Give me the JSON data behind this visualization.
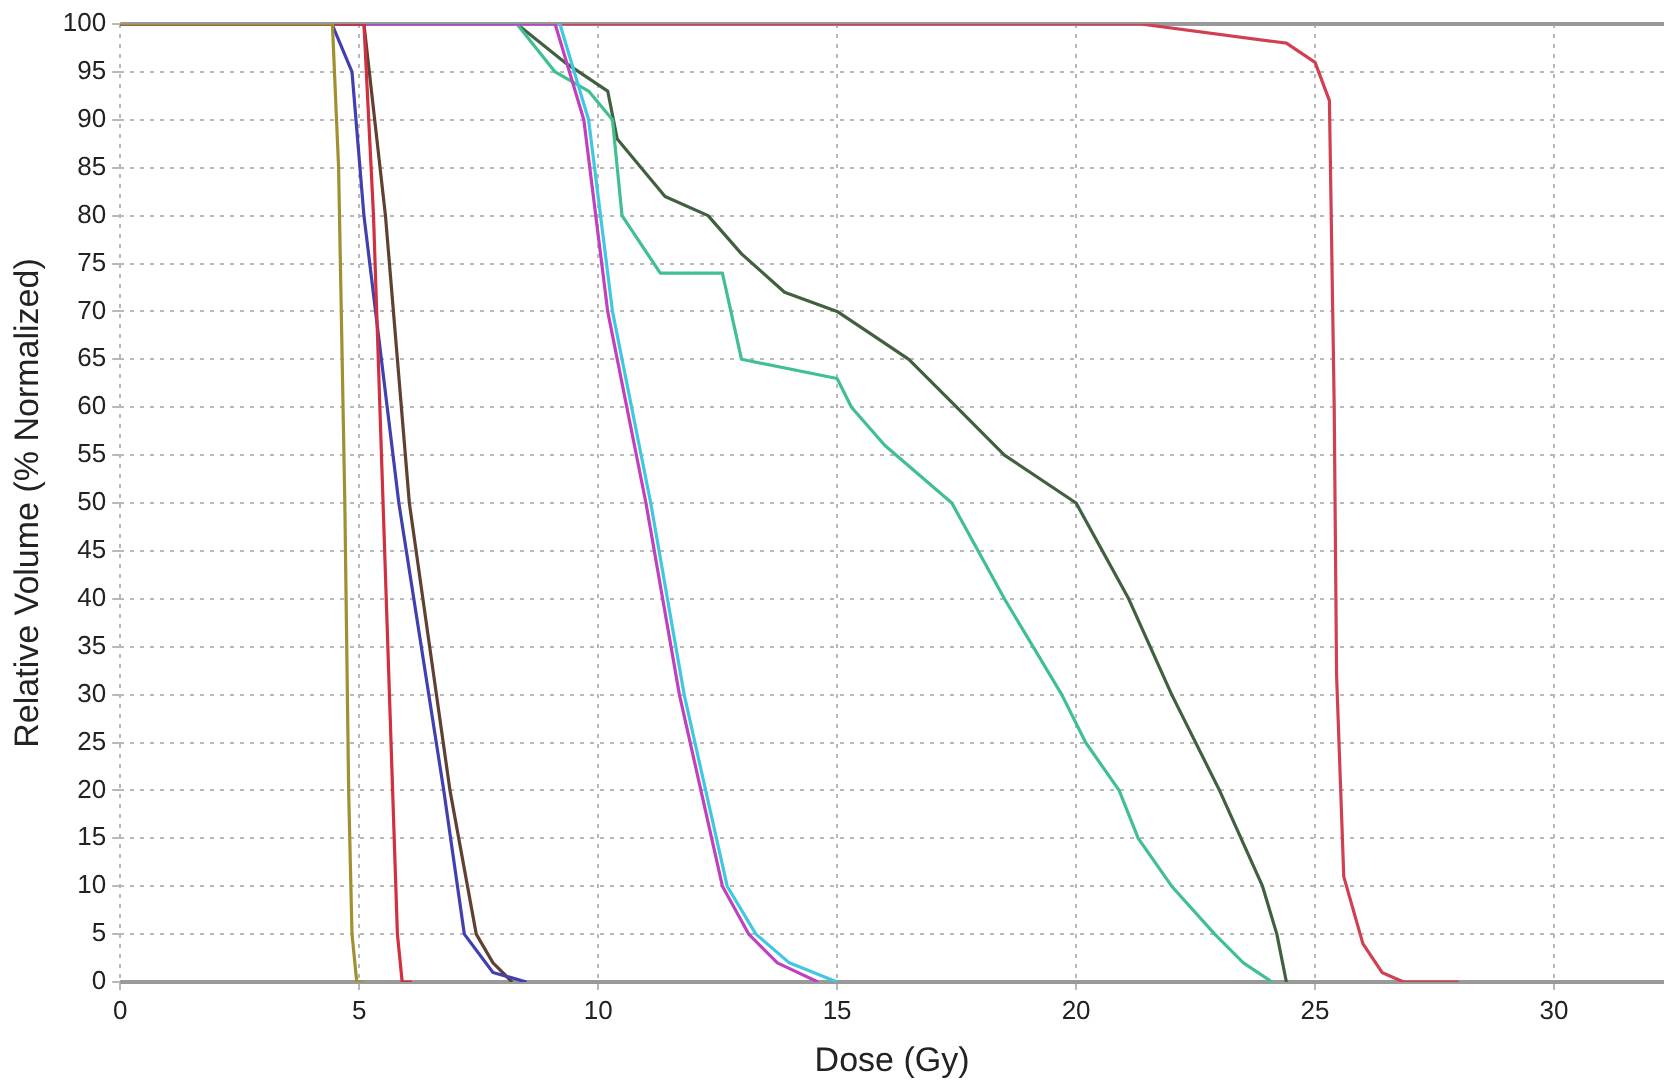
{
  "chart_data": {
    "type": "line",
    "xlabel": "Dose (Gy)",
    "ylabel": "Relative Volume (% Normalized)",
    "xlim": [
      0,
      32.3
    ],
    "xticks": [
      0,
      5,
      10,
      15,
      20,
      25,
      30
    ],
    "ylim": [
      0,
      100
    ],
    "yticks": [
      0,
      5,
      10,
      15,
      20,
      25,
      30,
      35,
      40,
      45,
      50,
      55,
      60,
      65,
      70,
      75,
      80,
      85,
      90,
      95,
      100
    ],
    "grid": true,
    "legend": false,
    "marker": "none",
    "line_style": "solid",
    "series": [
      {
        "color": "#a09030",
        "x": [
          0,
          4.44,
          4.57,
          4.7,
          4.78,
          4.85,
          4.95,
          5.1
        ],
        "values": [
          100,
          100,
          85,
          50,
          20,
          5,
          0,
          0
        ]
      },
      {
        "color": "#d03040",
        "x": [
          0,
          5.1,
          5.3,
          5.5,
          5.7,
          5.8,
          5.9,
          6.1
        ],
        "values": [
          100,
          100,
          80,
          50,
          20,
          5,
          0,
          0
        ]
      },
      {
        "color": "#4040b0",
        "x": [
          0,
          4.43,
          4.85,
          5.1,
          5.83,
          6.77,
          7.2,
          7.8,
          8.5
        ],
        "values": [
          100,
          100,
          95,
          80,
          50,
          20,
          5,
          1,
          0
        ]
      },
      {
        "color": "#604030",
        "x": [
          0,
          5.1,
          5.55,
          6.05,
          6.9,
          7.45,
          7.8,
          8.2
        ],
        "values": [
          100,
          100,
          80,
          50,
          20,
          5,
          2,
          0
        ]
      },
      {
        "color": "#c040c0",
        "x": [
          0,
          9.1,
          9.7,
          10.2,
          11.0,
          11.7,
          12.6,
          13.15,
          13.75,
          14.6
        ],
        "values": [
          100,
          100,
          90,
          70,
          50,
          30,
          10,
          5,
          2,
          0
        ]
      },
      {
        "color": "#40c8e0",
        "x": [
          0,
          9.2,
          9.8,
          10.3,
          11.1,
          11.8,
          12.7,
          13.3,
          14.0,
          15.0
        ],
        "values": [
          100,
          100,
          90,
          70,
          50,
          30,
          10,
          5,
          2,
          0
        ]
      },
      {
        "color": "#40c090",
        "x": [
          0,
          8.3,
          9.1,
          9.8,
          10.3,
          10.5,
          10.9,
          11.3,
          12.6,
          13.0,
          15.0,
          15.3,
          16.0,
          17.4,
          18.5,
          19.7,
          20.2,
          20.9,
          21.3,
          22.0,
          22.9,
          23.5,
          24.1
        ],
        "values": [
          100,
          100,
          95,
          93,
          90,
          80,
          77,
          74,
          74,
          65,
          63,
          60,
          56,
          50,
          40,
          30,
          25,
          20,
          15,
          10,
          5,
          2,
          0
        ]
      },
      {
        "color": "#406040",
        "x": [
          0,
          8.3,
          9.3,
          10.2,
          10.4,
          10.9,
          11.4,
          12.3,
          13.0,
          13.9,
          15.0,
          15.9,
          16.5,
          17.5,
          18.5,
          20.0,
          21.1,
          22.0,
          23.0,
          23.9,
          24.2,
          24.4
        ],
        "values": [
          100,
          100,
          96,
          93,
          88,
          85,
          82,
          80,
          76,
          72,
          70,
          67,
          65,
          60,
          55,
          50,
          40,
          30,
          20,
          10,
          5,
          0
        ]
      },
      {
        "color": "#d04050",
        "x": [
          0,
          16.7,
          21.35,
          24.4,
          25.0,
          25.3,
          25.4,
          25.45,
          25.6,
          26.0,
          26.4,
          26.85,
          28.0
        ],
        "values": [
          100,
          100,
          100,
          98,
          96,
          92,
          60,
          32,
          11,
          4,
          1,
          0,
          0
        ]
      }
    ]
  }
}
